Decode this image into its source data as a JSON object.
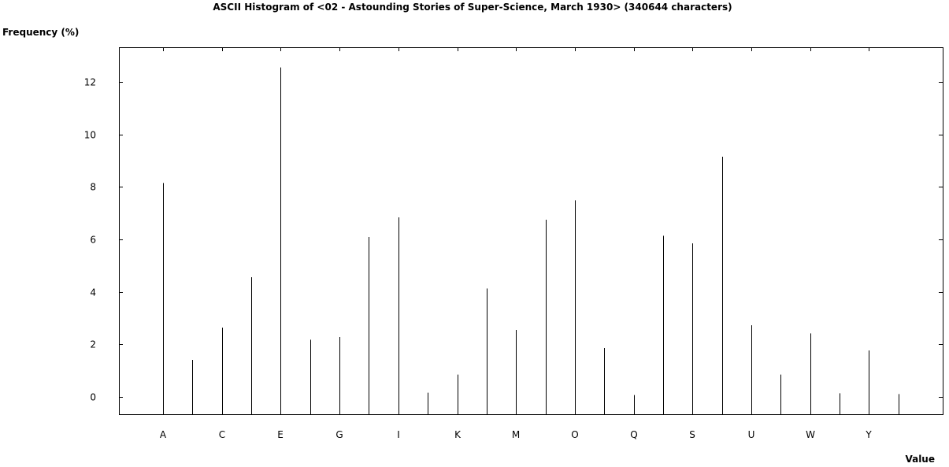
{
  "chart_data": {
    "type": "bar",
    "title": "ASCII Histogram of <02 - Astounding Stories of Super-Science, March 1930> (340644 characters)",
    "xlabel": "Value",
    "ylabel": "Frequency (%)",
    "categories": [
      "A",
      "B",
      "C",
      "D",
      "E",
      "F",
      "G",
      "H",
      "I",
      "J",
      "K",
      "L",
      "M",
      "N",
      "O",
      "P",
      "Q",
      "R",
      "S",
      "T",
      "U",
      "V",
      "W",
      "X",
      "Y",
      "Z"
    ],
    "x_tick_labels": [
      "A",
      "C",
      "E",
      "G",
      "I",
      "K",
      "M",
      "O",
      "Q",
      "S",
      "U",
      "W",
      "Y"
    ],
    "values": [
      8.15,
      1.41,
      2.64,
      4.56,
      12.55,
      2.18,
      2.28,
      6.09,
      6.84,
      0.16,
      0.85,
      4.13,
      2.55,
      6.75,
      7.49,
      1.86,
      0.07,
      6.14,
      5.85,
      9.15,
      2.73,
      0.85,
      2.42,
      0.14,
      1.77,
      0.11
    ],
    "ylim": [
      -0.7,
      13.3
    ],
    "y_ticks": [
      0,
      2,
      4,
      6,
      8,
      10,
      12
    ],
    "grid": false,
    "legend": "none"
  }
}
